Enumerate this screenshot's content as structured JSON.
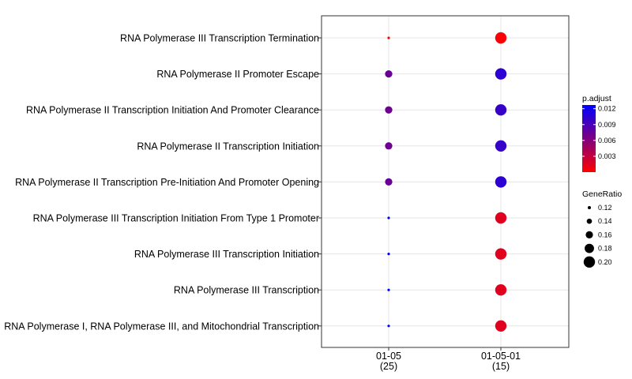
{
  "chart_data": {
    "type": "scatter",
    "categories": [
      "RNA Polymerase III Transcription Termination",
      "RNA Polymerase II Promoter Escape",
      "RNA Polymerase II Transcription Initiation And Promoter Clearance",
      "RNA Polymerase II Transcription Initiation",
      "RNA Polymerase II Transcription Pre-Initiation And Promoter Opening",
      "RNA Polymerase III Transcription Initiation From Type 1 Promoter",
      "RNA Polymerase III Transcription Initiation",
      "RNA Polymerase III Transcription",
      "RNA Polymerase I, RNA Polymerase III, and Mitochondrial Transcription"
    ],
    "groups": [
      {
        "label": "01-05",
        "count": "(25)"
      },
      {
        "label": "01-05-01",
        "count": "(15)"
      }
    ],
    "points": [
      {
        "group": 0,
        "category": 0,
        "gene_ratio": 0.113,
        "p_adjust": 0.0
      },
      {
        "group": 0,
        "category": 1,
        "gene_ratio": 0.16,
        "p_adjust": 0.0075
      },
      {
        "group": 0,
        "category": 2,
        "gene_ratio": 0.16,
        "p_adjust": 0.0072
      },
      {
        "group": 0,
        "category": 3,
        "gene_ratio": 0.16,
        "p_adjust": 0.0072
      },
      {
        "group": 0,
        "category": 4,
        "gene_ratio": 0.16,
        "p_adjust": 0.0075
      },
      {
        "group": 0,
        "category": 5,
        "gene_ratio": 0.113,
        "p_adjust": 0.0127
      },
      {
        "group": 0,
        "category": 6,
        "gene_ratio": 0.113,
        "p_adjust": 0.0127
      },
      {
        "group": 0,
        "category": 7,
        "gene_ratio": 0.113,
        "p_adjust": 0.0127
      },
      {
        "group": 0,
        "category": 8,
        "gene_ratio": 0.113,
        "p_adjust": 0.0127
      },
      {
        "group": 1,
        "category": 0,
        "gene_ratio": 0.2,
        "p_adjust": 0.0002
      },
      {
        "group": 1,
        "category": 1,
        "gene_ratio": 0.2,
        "p_adjust": 0.0105
      },
      {
        "group": 1,
        "category": 2,
        "gene_ratio": 0.2,
        "p_adjust": 0.01
      },
      {
        "group": 1,
        "category": 3,
        "gene_ratio": 0.2,
        "p_adjust": 0.01
      },
      {
        "group": 1,
        "category": 4,
        "gene_ratio": 0.2,
        "p_adjust": 0.0105
      },
      {
        "group": 1,
        "category": 5,
        "gene_ratio": 0.2,
        "p_adjust": 0.0015
      },
      {
        "group": 1,
        "category": 6,
        "gene_ratio": 0.2,
        "p_adjust": 0.0015
      },
      {
        "group": 1,
        "category": 7,
        "gene_ratio": 0.2,
        "p_adjust": 0.0015
      },
      {
        "group": 1,
        "category": 8,
        "gene_ratio": 0.2,
        "p_adjust": 0.0015
      }
    ],
    "color_legend": {
      "title": "p.adjust",
      "ticks": [
        "0.012",
        "0.009",
        "0.006",
        "0.003"
      ],
      "tick_values": [
        0.012,
        0.009,
        0.006,
        0.003
      ],
      "range": [
        0.0,
        0.0127
      ],
      "low_color": "#ff0000",
      "high_color": "#0000ff"
    },
    "size_legend": {
      "title": "GeneRatio",
      "ticks": [
        "0.12",
        "0.14",
        "0.16",
        "0.18",
        "0.20"
      ],
      "tick_values": [
        0.12,
        0.14,
        0.16,
        0.18,
        0.2
      ],
      "point_color": "#000000"
    },
    "grid": true,
    "legend_position": "right"
  }
}
